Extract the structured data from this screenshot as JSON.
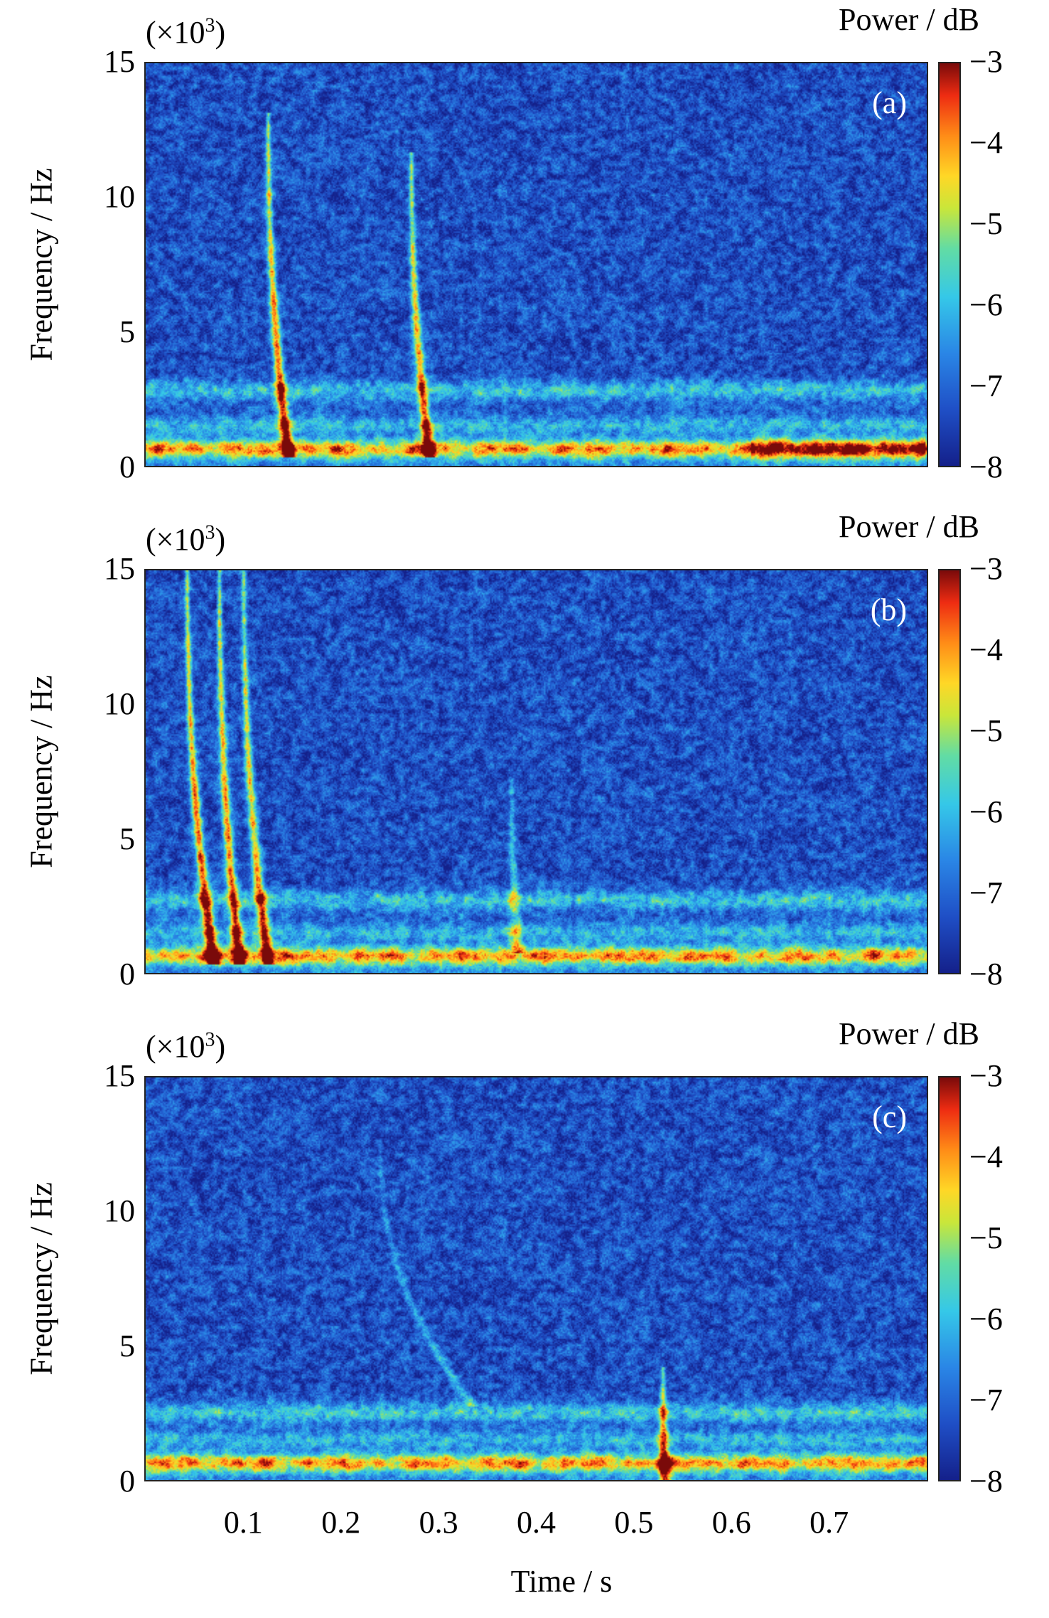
{
  "chart_data": [
    {
      "type": "heatmap",
      "panel_label": "(a)",
      "ylabel": "Frequency / Hz",
      "y_multiplier_base": "(×10",
      "y_multiplier_exp": "3",
      "y_multiplier_close": ")",
      "yticks": [
        "15",
        "10",
        "5",
        "0"
      ],
      "ylim": [
        0,
        15
      ],
      "xlim": [
        0,
        0.8
      ],
      "colorbar_label": "Power / dB",
      "colorbar_ticks": [
        "−3",
        "−4",
        "−5",
        "−6",
        "−7",
        "−8"
      ],
      "clim": [
        -8,
        -3
      ],
      "features": {
        "base_band_khz": 0.6,
        "band2_khz": 2.8,
        "chirps": [
          {
            "t_start": 0.125,
            "f_start_khz": 13.0,
            "t_end": 0.145,
            "f_end_khz": 0.6,
            "power_db": -3.2
          },
          {
            "t_start": 0.272,
            "f_start_khz": 11.5,
            "t_end": 0.29,
            "f_end_khz": 0.6,
            "power_db": -3.5
          }
        ],
        "strong_low_band_segment_s": [
          0.62,
          0.8
        ]
      }
    },
    {
      "type": "heatmap",
      "panel_label": "(b)",
      "ylabel": "Frequency / Hz",
      "y_multiplier_base": "(×10",
      "y_multiplier_exp": "3",
      "y_multiplier_close": ")",
      "yticks": [
        "15",
        "10",
        "5",
        "0"
      ],
      "ylim": [
        0,
        15
      ],
      "xlim": [
        0,
        0.8
      ],
      "colorbar_label": "Power / dB",
      "colorbar_ticks": [
        "−3",
        "−4",
        "−5",
        "−6",
        "−7",
        "−8"
      ],
      "clim": [
        -8,
        -3
      ],
      "features": {
        "base_band_khz": 0.6,
        "band2_khz": 2.7,
        "chirps": [
          {
            "t_start": 0.042,
            "f_start_khz": 15.0,
            "t_end": 0.068,
            "f_end_khz": 0.6,
            "power_db": -3.1
          },
          {
            "t_start": 0.075,
            "f_start_khz": 15.0,
            "t_end": 0.095,
            "f_end_khz": 0.6,
            "power_db": -3.3
          },
          {
            "t_start": 0.1,
            "f_start_khz": 15.0,
            "t_end": 0.124,
            "f_end_khz": 0.6,
            "power_db": -3.6
          },
          {
            "t_start": 0.375,
            "f_start_khz": 7.0,
            "t_end": 0.38,
            "f_end_khz": 1.0,
            "power_db": -5.5
          }
        ]
      }
    },
    {
      "type": "heatmap",
      "panel_label": "(c)",
      "ylabel": "Frequency / Hz",
      "y_multiplier_base": "(×10",
      "y_multiplier_exp": "3",
      "y_multiplier_close": ")",
      "yticks": [
        "15",
        "10",
        "5",
        "0"
      ],
      "ylim": [
        0,
        15
      ],
      "xlim": [
        0,
        0.8
      ],
      "colorbar_label": "Power / dB",
      "colorbar_ticks": [
        "−3",
        "−4",
        "−5",
        "−6",
        "−7",
        "−8"
      ],
      "clim": [
        -8,
        -3
      ],
      "features": {
        "base_band_khz": 0.6,
        "band2_khz": 2.5,
        "chirps": [
          {
            "t_start": 0.24,
            "f_start_khz": 12.5,
            "t_end": 0.33,
            "f_end_khz": 3.0,
            "power_db": -6.0
          },
          {
            "t_start": 0.53,
            "f_start_khz": 4.0,
            "t_end": 0.532,
            "f_end_khz": 0.0,
            "power_db": -3.8
          }
        ]
      }
    }
  ],
  "xaxis": {
    "label": "Time / s",
    "ticks": [
      "0.1",
      "0.2",
      "0.3",
      "0.4",
      "0.5",
      "0.6",
      "0.7"
    ],
    "tick_values": [
      0.1,
      0.2,
      0.3,
      0.4,
      0.5,
      0.6,
      0.7
    ]
  }
}
